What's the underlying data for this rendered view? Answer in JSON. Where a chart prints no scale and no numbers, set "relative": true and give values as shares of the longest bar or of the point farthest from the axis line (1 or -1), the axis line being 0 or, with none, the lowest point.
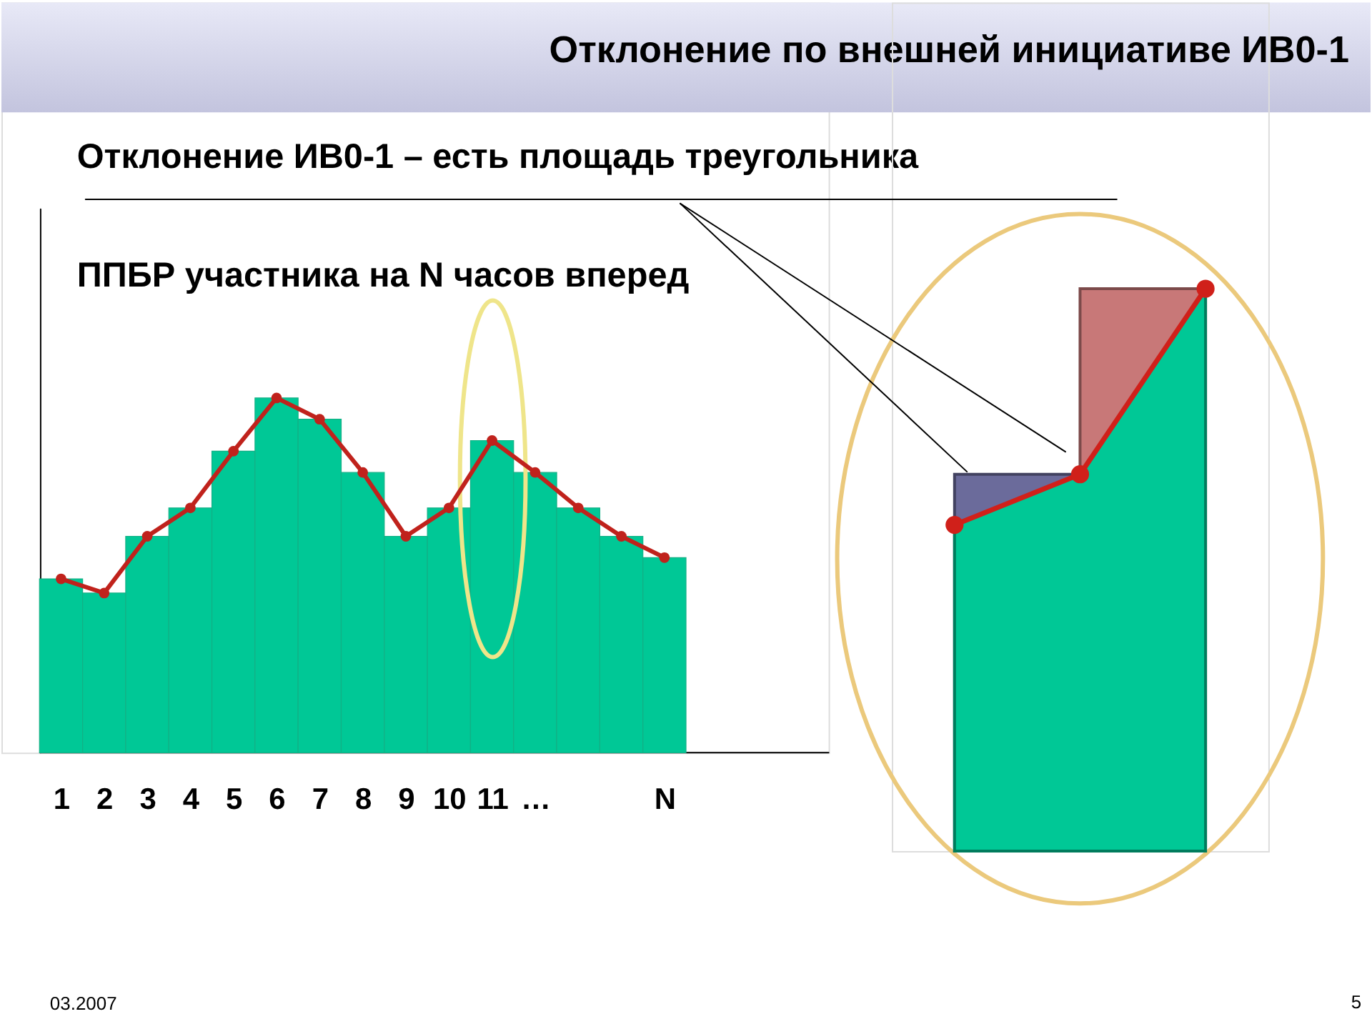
{
  "chart_data": [
    {
      "type": "bar",
      "title": "Отклонение по внешней инициативе ИВ0-1",
      "subtitle": "Отклонение ИВ0-1 – есть площадь треугольника",
      "annotations": [
        "ППБР участника на N часов вперед",
        "03.2007"
      ],
      "categories": [
        "1",
        "2",
        "3",
        "4",
        "5",
        "6",
        "7",
        "8",
        "9",
        "10",
        "11",
        "…",
        null,
        null,
        "N"
      ],
      "relative": true,
      "tick_labels": "x",
      "marker": "circle",
      "series": [
        {
          "color": "#00c896",
          "values": [
            0.49,
            0.45,
            0.61,
            0.69,
            0.85,
            1,
            0.94,
            0.79,
            0.61,
            0.69,
            0.88,
            0.79,
            0.69,
            0.61,
            0.55
          ]
        },
        {
          "type": "line",
          "color": "#c0221c",
          "values": [
            0.49,
            0.45,
            0.61,
            0.69,
            0.85,
            1,
            0.94,
            0.79,
            0.61,
            0.69,
            0.88,
            0.79,
            0.69,
            0.61,
            0.55
          ]
        }
      ]
    },
    {
      "type": "area",
      "annotations": [
        "5"
      ],
      "categories": [
        null,
        null,
        null
      ],
      "relative": true,
      "tick_labels": false,
      "series": [
        {
          "color": "#6b6b9b",
          "values": [
            0.67,
            0.67,
            null
          ]
        },
        {
          "color": "#c87878",
          "values": [
            null,
            1,
            1
          ]
        },
        {
          "color": "#00c896",
          "values": [
            0.58,
            0.67,
            1
          ]
        },
        {
          "type": "line",
          "color": "#d0201a",
          "marker": "circle",
          "values": [
            0.58,
            0.67,
            1
          ]
        }
      ]
    }
  ]
}
